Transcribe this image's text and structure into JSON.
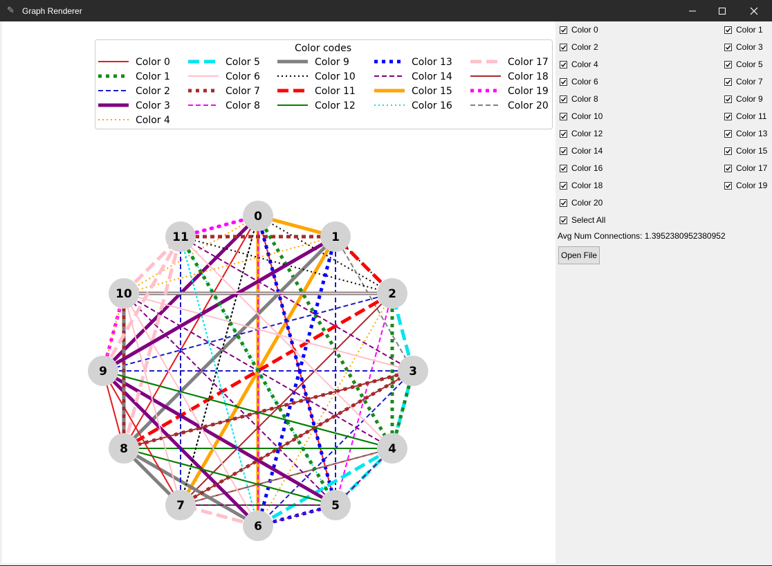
{
  "window": {
    "title": "Graph Renderer",
    "icon": "feather-icon"
  },
  "legend": {
    "title": "Color codes",
    "entries": [
      {
        "label": "Color 0",
        "color": "#e41a1c",
        "style": "solid"
      },
      {
        "label": "Color 1",
        "color": "#1a8a1a",
        "style": "bigdot"
      },
      {
        "label": "Color 2",
        "color": "#1a1acc",
        "style": "dash"
      },
      {
        "label": "Color 3",
        "color": "#800080",
        "style": "thick"
      },
      {
        "label": "Color 4",
        "color": "#ffa500",
        "style": "dot"
      },
      {
        "label": "Color 5",
        "color": "#00e5ee",
        "style": "bigdash"
      },
      {
        "label": "Color 6",
        "color": "#ffc0cb",
        "style": "solid"
      },
      {
        "label": "Color 7",
        "color": "#a52a2a",
        "style": "bigdot"
      },
      {
        "label": "Color 8",
        "color": "#ff00ff",
        "style": "dash"
      },
      {
        "label": "Color 9",
        "color": "#808080",
        "style": "thick"
      },
      {
        "label": "Color 10",
        "color": "#000000",
        "style": "dot"
      },
      {
        "label": "Color 11",
        "color": "#ff0000",
        "style": "bigdash"
      },
      {
        "label": "Color 12",
        "color": "#008000",
        "style": "solid"
      },
      {
        "label": "Color 13",
        "color": "#0000ff",
        "style": "bigdot"
      },
      {
        "label": "Color 14",
        "color": "#800080",
        "style": "dash"
      },
      {
        "label": "Color 15",
        "color": "#ffa500",
        "style": "thick"
      },
      {
        "label": "Color 16",
        "color": "#00e5ee",
        "style": "dot"
      },
      {
        "label": "Color 17",
        "color": "#ffc0cb",
        "style": "bigdash"
      },
      {
        "label": "Color 18",
        "color": "#a52a2a",
        "style": "solid"
      },
      {
        "label": "Color 19",
        "color": "#ff00ff",
        "style": "bigdot"
      },
      {
        "label": "Color 20",
        "color": "#808080",
        "style": "dash"
      }
    ]
  },
  "graph": {
    "nodes": [
      "0",
      "1",
      "2",
      "3",
      "4",
      "5",
      "6",
      "7",
      "8",
      "9",
      "10",
      "11"
    ],
    "node_color": "#d3d3d3",
    "edges": [
      [
        0,
        1,
        15
      ],
      [
        0,
        6,
        15
      ],
      [
        1,
        7,
        15
      ],
      [
        0,
        5,
        0
      ],
      [
        0,
        8,
        0
      ],
      [
        0,
        9,
        3
      ],
      [
        0,
        10,
        4
      ],
      [
        0,
        11,
        8
      ],
      [
        0,
        4,
        1
      ],
      [
        0,
        2,
        10
      ],
      [
        0,
        7,
        10
      ],
      [
        0,
        5,
        13
      ],
      [
        0,
        6,
        8
      ],
      [
        1,
        8,
        9
      ],
      [
        1,
        9,
        3
      ],
      [
        1,
        2,
        10
      ],
      [
        1,
        6,
        13
      ],
      [
        1,
        11,
        7
      ],
      [
        1,
        10,
        4
      ],
      [
        1,
        3,
        20
      ],
      [
        1,
        5,
        2
      ],
      [
        2,
        10,
        9
      ],
      [
        2,
        1,
        11
      ],
      [
        2,
        8,
        11
      ],
      [
        2,
        9,
        2
      ],
      [
        2,
        6,
        4
      ],
      [
        2,
        11,
        10
      ],
      [
        2,
        4,
        1
      ],
      [
        2,
        7,
        18
      ],
      [
        2,
        5,
        8
      ],
      [
        3,
        9,
        2
      ],
      [
        3,
        2,
        5
      ],
      [
        3,
        4,
        5
      ],
      [
        3,
        10,
        6
      ],
      [
        3,
        11,
        14
      ],
      [
        3,
        6,
        2
      ],
      [
        3,
        8,
        7
      ],
      [
        3,
        7,
        18
      ],
      [
        3,
        4,
        1
      ],
      [
        4,
        9,
        12
      ],
      [
        4,
        8,
        12
      ],
      [
        4,
        7,
        0
      ],
      [
        4,
        6,
        5
      ],
      [
        4,
        5,
        5
      ],
      [
        4,
        11,
        6
      ],
      [
        4,
        10,
        14
      ],
      [
        4,
        7,
        20
      ],
      [
        5,
        9,
        3
      ],
      [
        5,
        6,
        13
      ],
      [
        5,
        7,
        12
      ],
      [
        5,
        8,
        18
      ],
      [
        5,
        10,
        14
      ],
      [
        5,
        11,
        16
      ],
      [
        5,
        6,
        14
      ],
      [
        5,
        4,
        14
      ],
      [
        6,
        9,
        3
      ],
      [
        6,
        10,
        6
      ],
      [
        6,
        7,
        17
      ],
      [
        6,
        11,
        16
      ],
      [
        6,
        8,
        9
      ],
      [
        7,
        8,
        9
      ],
      [
        7,
        9,
        0
      ],
      [
        7,
        11,
        2
      ],
      [
        7,
        10,
        6
      ],
      [
        7,
        0,
        10
      ],
      [
        7,
        3,
        7
      ],
      [
        7,
        5,
        14
      ],
      [
        8,
        10,
        9
      ],
      [
        8,
        9,
        0
      ],
      [
        8,
        11,
        17
      ],
      [
        8,
        10,
        7
      ],
      [
        8,
        3,
        18
      ],
      [
        8,
        5,
        12
      ],
      [
        9,
        10,
        19
      ],
      [
        9,
        11,
        17
      ],
      [
        9,
        4,
        12
      ],
      [
        9,
        1,
        3
      ],
      [
        10,
        11,
        17
      ],
      [
        10,
        9,
        4
      ],
      [
        10,
        2,
        6
      ],
      [
        11,
        0,
        19
      ],
      [
        11,
        1,
        7
      ],
      [
        11,
        6,
        16
      ],
      [
        11,
        5,
        1
      ]
    ]
  },
  "sidebar": {
    "checkboxes_left": [
      "Color 0",
      "Color 2",
      "Color 4",
      "Color 6",
      "Color 8",
      "Color 10",
      "Color 12",
      "Color 14",
      "Color 16",
      "Color 18",
      "Color 20",
      "Select All"
    ],
    "checkboxes_right": [
      "Color 1",
      "Color 3",
      "Color 5",
      "Color 7",
      "Color 9",
      "Color 11",
      "Color 13",
      "Color 15",
      "Color 17",
      "Color 19"
    ],
    "avg_text": "Avg Num Connections: 1.3952380952380952",
    "open_file_label": "Open File"
  }
}
